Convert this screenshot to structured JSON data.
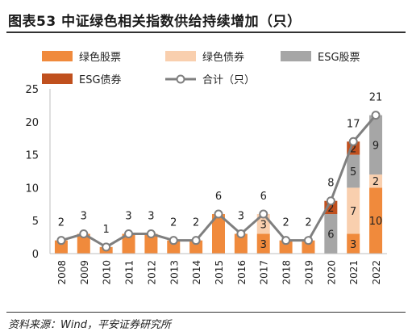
{
  "figure": {
    "title": "图表53    中证绿色相关指数供给持续增加（只）",
    "source": "资料来源：Wind，平安证券研究所"
  },
  "chart_data": {
    "type": "bar",
    "stacked": true,
    "categories": [
      "2008",
      "2009",
      "2010",
      "2011",
      "2012",
      "2013",
      "2014",
      "2015",
      "2016",
      "2017",
      "2018",
      "2019",
      "2020",
      "2021",
      "2022"
    ],
    "series": [
      {
        "name": "绿色股票",
        "color": "#F08A3C",
        "values": [
          2,
          3,
          1,
          3,
          3,
          2,
          2,
          6,
          3,
          3,
          2,
          2,
          0,
          3,
          10
        ]
      },
      {
        "name": "绿色债券",
        "color": "#F9CFAE",
        "values": [
          0,
          0,
          0,
          0,
          0,
          0,
          0,
          0,
          0,
          3,
          0,
          0,
          0,
          7,
          2
        ]
      },
      {
        "name": "ESG股票",
        "color": "#A6A6A6",
        "values": [
          0,
          0,
          0,
          0,
          0,
          0,
          0,
          0,
          0,
          0,
          0,
          0,
          6,
          5,
          9
        ]
      },
      {
        "name": "ESG债券",
        "color": "#C0501E",
        "values": [
          0,
          0,
          0,
          0,
          0,
          0,
          0,
          0,
          0,
          0,
          0,
          0,
          2,
          2,
          0
        ]
      }
    ],
    "line": {
      "name": "合计（只）",
      "color": "#7F7F7F",
      "values": [
        2,
        3,
        1,
        3,
        3,
        2,
        2,
        6,
        3,
        6,
        2,
        2,
        8,
        17,
        21
      ]
    },
    "segment_labels": [
      {
        "category": "2017",
        "series": "绿色股票",
        "text": "3"
      },
      {
        "category": "2017",
        "series": "绿色债券",
        "text": "3"
      },
      {
        "category": "2020",
        "series": "ESG股票",
        "text": "6"
      },
      {
        "category": "2020",
        "series": "ESG债券",
        "text": "2"
      },
      {
        "category": "2021",
        "series": "绿色股票",
        "text": "3"
      },
      {
        "category": "2021",
        "series": "绿色债券",
        "text": "7"
      },
      {
        "category": "2021",
        "series": "ESG股票",
        "text": "5"
      },
      {
        "category": "2021",
        "series": "ESG债券",
        "text": "2"
      },
      {
        "category": "2022",
        "series": "绿色股票",
        "text": "10"
      },
      {
        "category": "2022",
        "series": "绿色债券",
        "text": "2"
      },
      {
        "category": "2022",
        "series": "ESG股票",
        "text": "9"
      }
    ],
    "ylim": [
      0,
      25
    ],
    "yticks": [
      0,
      5,
      10,
      15,
      20,
      25
    ],
    "grid": false,
    "legend_position": "top"
  }
}
